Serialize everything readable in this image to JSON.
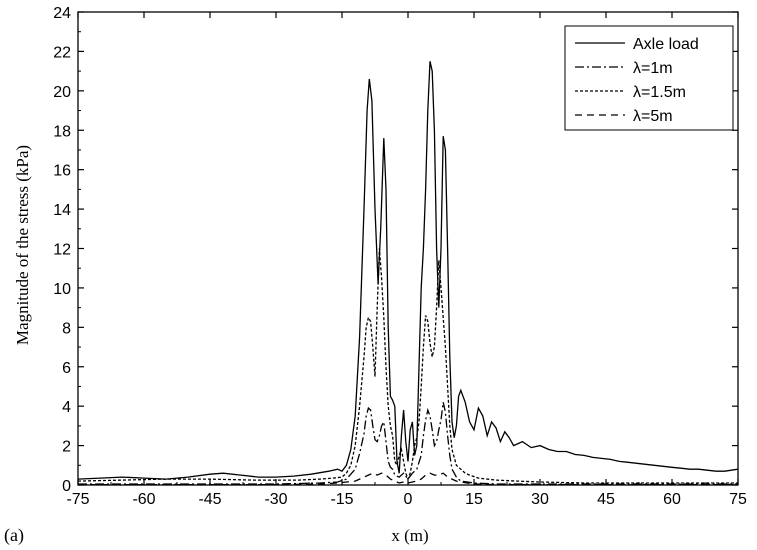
{
  "chart_data": {
    "type": "line",
    "panel_label": "(a)",
    "xlabel": "x (m)",
    "ylabel": "Magnitude of the stress (kPa)",
    "xlim": [
      -75,
      75
    ],
    "ylim": [
      0,
      24
    ],
    "xticks": [
      -75,
      -60,
      -45,
      -30,
      -15,
      0,
      15,
      30,
      45,
      60,
      75
    ],
    "yticks": [
      0,
      2,
      4,
      6,
      8,
      10,
      12,
      14,
      16,
      18,
      20,
      22,
      24
    ],
    "legend_position": "top-right",
    "series": [
      {
        "name": "Axle load",
        "dash": "solid",
        "points": [
          [
            -75,
            0.3
          ],
          [
            -70,
            0.35
          ],
          [
            -65,
            0.4
          ],
          [
            -60,
            0.35
          ],
          [
            -55,
            0.3
          ],
          [
            -50,
            0.4
          ],
          [
            -45,
            0.55
          ],
          [
            -42,
            0.6
          ],
          [
            -38,
            0.5
          ],
          [
            -34,
            0.4
          ],
          [
            -30,
            0.4
          ],
          [
            -26,
            0.45
          ],
          [
            -22,
            0.55
          ],
          [
            -18,
            0.7
          ],
          [
            -16,
            0.8
          ],
          [
            -15,
            0.7
          ],
          [
            -14,
            1.0
          ],
          [
            -13,
            1.8
          ],
          [
            -12,
            3.5
          ],
          [
            -11,
            7.5
          ],
          [
            -10,
            14
          ],
          [
            -9.3,
            19
          ],
          [
            -8.8,
            20.6
          ],
          [
            -8.2,
            19.5
          ],
          [
            -7.5,
            14
          ],
          [
            -6.8,
            10.2
          ],
          [
            -6.2,
            13
          ],
          [
            -5.5,
            17.6
          ],
          [
            -5,
            15
          ],
          [
            -4.5,
            8
          ],
          [
            -4,
            4.5
          ],
          [
            -3.5,
            4.3
          ],
          [
            -3,
            4.0
          ],
          [
            -2.5,
            1.2
          ],
          [
            -2,
            0.6
          ],
          [
            -1.5,
            2.5
          ],
          [
            -1,
            3.8
          ],
          [
            -0.5,
            2.2
          ],
          [
            0,
            1.2
          ],
          [
            0.5,
            2.8
          ],
          [
            1,
            3.2
          ],
          [
            1.5,
            1.5
          ],
          [
            2,
            2.0
          ],
          [
            2.5,
            6
          ],
          [
            3,
            10
          ],
          [
            3.5,
            12
          ],
          [
            4,
            15
          ],
          [
            4.5,
            19
          ],
          [
            5,
            21.5
          ],
          [
            5.5,
            21
          ],
          [
            6,
            18
          ],
          [
            6.5,
            12
          ],
          [
            7,
            9
          ],
          [
            7.5,
            12
          ],
          [
            8,
            17.7
          ],
          [
            8.5,
            17
          ],
          [
            9,
            12
          ],
          [
            9.5,
            6.5
          ],
          [
            10,
            3.2
          ],
          [
            10.5,
            2.4
          ],
          [
            11,
            3
          ],
          [
            11.5,
            4.5
          ],
          [
            12,
            4.8
          ],
          [
            13,
            4.2
          ],
          [
            14,
            3.2
          ],
          [
            15,
            2.8
          ],
          [
            16,
            3.9
          ],
          [
            17,
            3.5
          ],
          [
            18,
            2.5
          ],
          [
            19,
            3.2
          ],
          [
            20,
            2.9
          ],
          [
            21,
            2.2
          ],
          [
            22,
            2.7
          ],
          [
            23,
            2.4
          ],
          [
            24,
            2.0
          ],
          [
            26,
            2.2
          ],
          [
            28,
            1.9
          ],
          [
            30,
            2.0
          ],
          [
            32,
            1.8
          ],
          [
            34,
            1.7
          ],
          [
            36,
            1.7
          ],
          [
            38,
            1.55
          ],
          [
            40,
            1.5
          ],
          [
            42,
            1.4
          ],
          [
            44,
            1.35
          ],
          [
            46,
            1.3
          ],
          [
            48,
            1.2
          ],
          [
            50,
            1.15
          ],
          [
            52,
            1.1
          ],
          [
            54,
            1.05
          ],
          [
            56,
            1.0
          ],
          [
            58,
            0.95
          ],
          [
            60,
            0.9
          ],
          [
            62,
            0.85
          ],
          [
            64,
            0.8
          ],
          [
            66,
            0.8
          ],
          [
            68,
            0.75
          ],
          [
            70,
            0.7
          ],
          [
            72,
            0.7
          ],
          [
            75,
            0.8
          ]
        ]
      },
      {
        "name": "λ=1m",
        "dash": "dashdot",
        "points": [
          [
            -75,
            0.05
          ],
          [
            -60,
            0.05
          ],
          [
            -45,
            0.05
          ],
          [
            -30,
            0.05
          ],
          [
            -20,
            0.1
          ],
          [
            -16,
            0.15
          ],
          [
            -14,
            0.3
          ],
          [
            -12,
            0.8
          ],
          [
            -11,
            1.6
          ],
          [
            -10,
            2.6
          ],
          [
            -9.5,
            3.5
          ],
          [
            -9,
            3.9
          ],
          [
            -8.5,
            3.8
          ],
          [
            -8,
            3.0
          ],
          [
            -7.5,
            2.3
          ],
          [
            -7,
            2.2
          ],
          [
            -6.5,
            2.5
          ],
          [
            -6,
            3.0
          ],
          [
            -5.5,
            3.2
          ],
          [
            -5,
            2.2
          ],
          [
            -4.5,
            1.2
          ],
          [
            -4,
            0.9
          ],
          [
            -3.5,
            0.8
          ],
          [
            -3,
            0.5
          ],
          [
            -2,
            0.4
          ],
          [
            -1,
            0.6
          ],
          [
            0,
            0.3
          ],
          [
            1,
            0.6
          ],
          [
            2,
            0.8
          ],
          [
            3,
            1.5
          ],
          [
            3.5,
            2.5
          ],
          [
            4,
            3.3
          ],
          [
            4.5,
            3.8
          ],
          [
            5,
            3.5
          ],
          [
            5.5,
            2.8
          ],
          [
            6,
            2.0
          ],
          [
            6.5,
            2.2
          ],
          [
            7,
            2.8
          ],
          [
            7.5,
            3.3
          ],
          [
            8,
            4.2
          ],
          [
            8.5,
            3.7
          ],
          [
            9,
            2.5
          ],
          [
            9.5,
            1.5
          ],
          [
            10,
            0.8
          ],
          [
            11,
            0.4
          ],
          [
            12,
            0.2
          ],
          [
            15,
            0.1
          ],
          [
            20,
            0.05
          ],
          [
            30,
            0.05
          ],
          [
            45,
            0.05
          ],
          [
            60,
            0.05
          ],
          [
            75,
            0.05
          ]
        ]
      },
      {
        "name": "λ=1.5m",
        "dash": "dotted",
        "points": [
          [
            -75,
            0.2
          ],
          [
            -65,
            0.25
          ],
          [
            -55,
            0.3
          ],
          [
            -45,
            0.3
          ],
          [
            -35,
            0.25
          ],
          [
            -25,
            0.25
          ],
          [
            -20,
            0.3
          ],
          [
            -17,
            0.35
          ],
          [
            -15,
            0.4
          ],
          [
            -14,
            0.6
          ],
          [
            -13,
            1.0
          ],
          [
            -12,
            2.0
          ],
          [
            -11,
            4.0
          ],
          [
            -10,
            6.5
          ],
          [
            -9.5,
            8.0
          ],
          [
            -9,
            8.5
          ],
          [
            -8.5,
            8.3
          ],
          [
            -8,
            7.0
          ],
          [
            -7.5,
            5.5
          ],
          [
            -7,
            9.0
          ],
          [
            -6.5,
            12.0
          ],
          [
            -6,
            10.5
          ],
          [
            -5.5,
            8.5
          ],
          [
            -5,
            6.0
          ],
          [
            -4.5,
            4.0
          ],
          [
            -4,
            3.0
          ],
          [
            -3.5,
            2.5
          ],
          [
            -3,
            1.2
          ],
          [
            -2.5,
            1.0
          ],
          [
            -2,
            1.5
          ],
          [
            -1.5,
            1.8
          ],
          [
            -1,
            1.2
          ],
          [
            -0.5,
            0.6
          ],
          [
            0,
            0.3
          ],
          [
            0.5,
            0.6
          ],
          [
            1,
            1.2
          ],
          [
            1.5,
            2.0
          ],
          [
            2,
            2.4
          ],
          [
            2.5,
            3.2
          ],
          [
            3,
            5.0
          ],
          [
            3.5,
            7.0
          ],
          [
            4,
            8.6
          ],
          [
            4.5,
            8.3
          ],
          [
            5,
            7.2
          ],
          [
            5.5,
            6.5
          ],
          [
            6,
            7.0
          ],
          [
            6.5,
            9.0
          ],
          [
            7,
            11.4
          ],
          [
            7.5,
            10.0
          ],
          [
            8,
            8.5
          ],
          [
            8.5,
            7.0
          ],
          [
            9,
            5.0
          ],
          [
            9.5,
            3.0
          ],
          [
            10,
            1.8
          ],
          [
            11,
            1.0
          ],
          [
            12,
            0.8
          ],
          [
            13,
            0.6
          ],
          [
            14,
            0.5
          ],
          [
            16,
            0.35
          ],
          [
            20,
            0.25
          ],
          [
            25,
            0.2
          ],
          [
            30,
            0.15
          ],
          [
            40,
            0.1
          ],
          [
            50,
            0.1
          ],
          [
            60,
            0.1
          ],
          [
            75,
            0.1
          ]
        ]
      },
      {
        "name": "λ=5m",
        "dash": "dashed",
        "points": [
          [
            -75,
            0.02
          ],
          [
            -60,
            0.02
          ],
          [
            -45,
            0.02
          ],
          [
            -30,
            0.02
          ],
          [
            -20,
            0.05
          ],
          [
            -16,
            0.1
          ],
          [
            -14,
            0.15
          ],
          [
            -12,
            0.2
          ],
          [
            -11,
            0.3
          ],
          [
            -10,
            0.4
          ],
          [
            -9,
            0.5
          ],
          [
            -8,
            0.6
          ],
          [
            -7,
            0.5
          ],
          [
            -6,
            0.6
          ],
          [
            -5,
            0.5
          ],
          [
            -4,
            0.3
          ],
          [
            -3,
            0.2
          ],
          [
            -2,
            0.1
          ],
          [
            -1,
            0.15
          ],
          [
            0,
            0.1
          ],
          [
            1,
            0.15
          ],
          [
            2,
            0.2
          ],
          [
            3,
            0.3
          ],
          [
            4,
            0.5
          ],
          [
            5,
            0.6
          ],
          [
            6,
            0.5
          ],
          [
            7,
            0.5
          ],
          [
            8,
            0.6
          ],
          [
            9,
            0.4
          ],
          [
            10,
            0.3
          ],
          [
            11,
            0.2
          ],
          [
            12,
            0.15
          ],
          [
            15,
            0.05
          ],
          [
            20,
            0.02
          ],
          [
            30,
            0.02
          ],
          [
            45,
            0.02
          ],
          [
            60,
            0.02
          ],
          [
            75,
            0.02
          ]
        ]
      }
    ]
  }
}
